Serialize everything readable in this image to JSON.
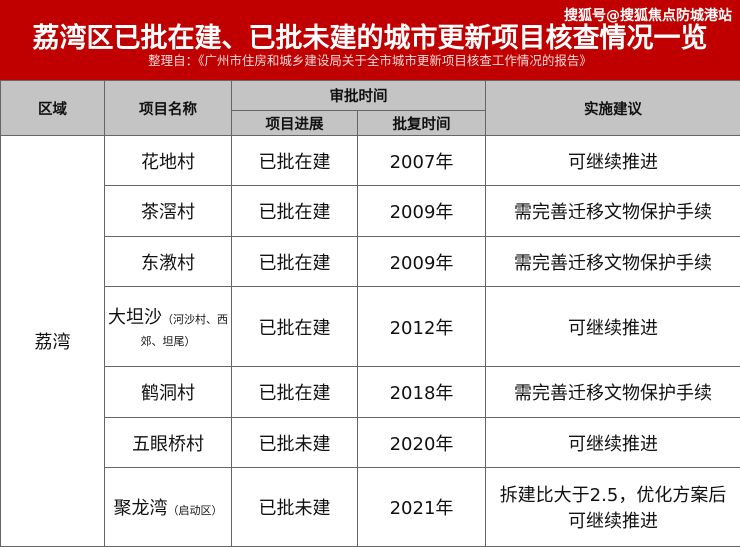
{
  "header": {
    "title": "荔湾区已批在建、已批未建的城市更新项目核查情况一览",
    "source": "整理自：《广州市住房和城乡建设局关于全市城市更新项目核查工作情况的报告》",
    "watermark": "搜狐号@搜狐焦点防城港站",
    "color": "#c00000"
  },
  "columns": {
    "region": "区域",
    "name": "项目名称",
    "approval": "审批时间",
    "progress": "项目进展",
    "approval_date": "批复时间",
    "advice": "实施建议"
  },
  "region": "荔湾",
  "rows": [
    {
      "name": "花地村",
      "note": "",
      "progress": "已批在建",
      "year": "2007年",
      "advice": "可继续推进"
    },
    {
      "name": "茶滘村",
      "note": "",
      "progress": "已批在建",
      "year": "2009年",
      "advice": "需完善迁移文物保护手续"
    },
    {
      "name": "东漖村",
      "note": "",
      "progress": "已批在建",
      "year": "2009年",
      "advice": "需完善迁移文物保护手续"
    },
    {
      "name": "大坦沙",
      "note": "（河沙村、西郊、坦尾）",
      "progress": "已批在建",
      "year": "2012年",
      "advice": "可继续推进"
    },
    {
      "name": "鹤洞村",
      "note": "",
      "progress": "已批在建",
      "year": "2018年",
      "advice": "需完善迁移文物保护手续"
    },
    {
      "name": "五眼桥村",
      "note": "",
      "progress": "已批未建",
      "year": "2020年",
      "advice": "可继续推进"
    },
    {
      "name": "聚龙湾",
      "note": "（启动区）",
      "progress": "已批未建",
      "year": "2021年",
      "advice": "拆建比大于2.5，优化方案后可继续推进"
    }
  ]
}
